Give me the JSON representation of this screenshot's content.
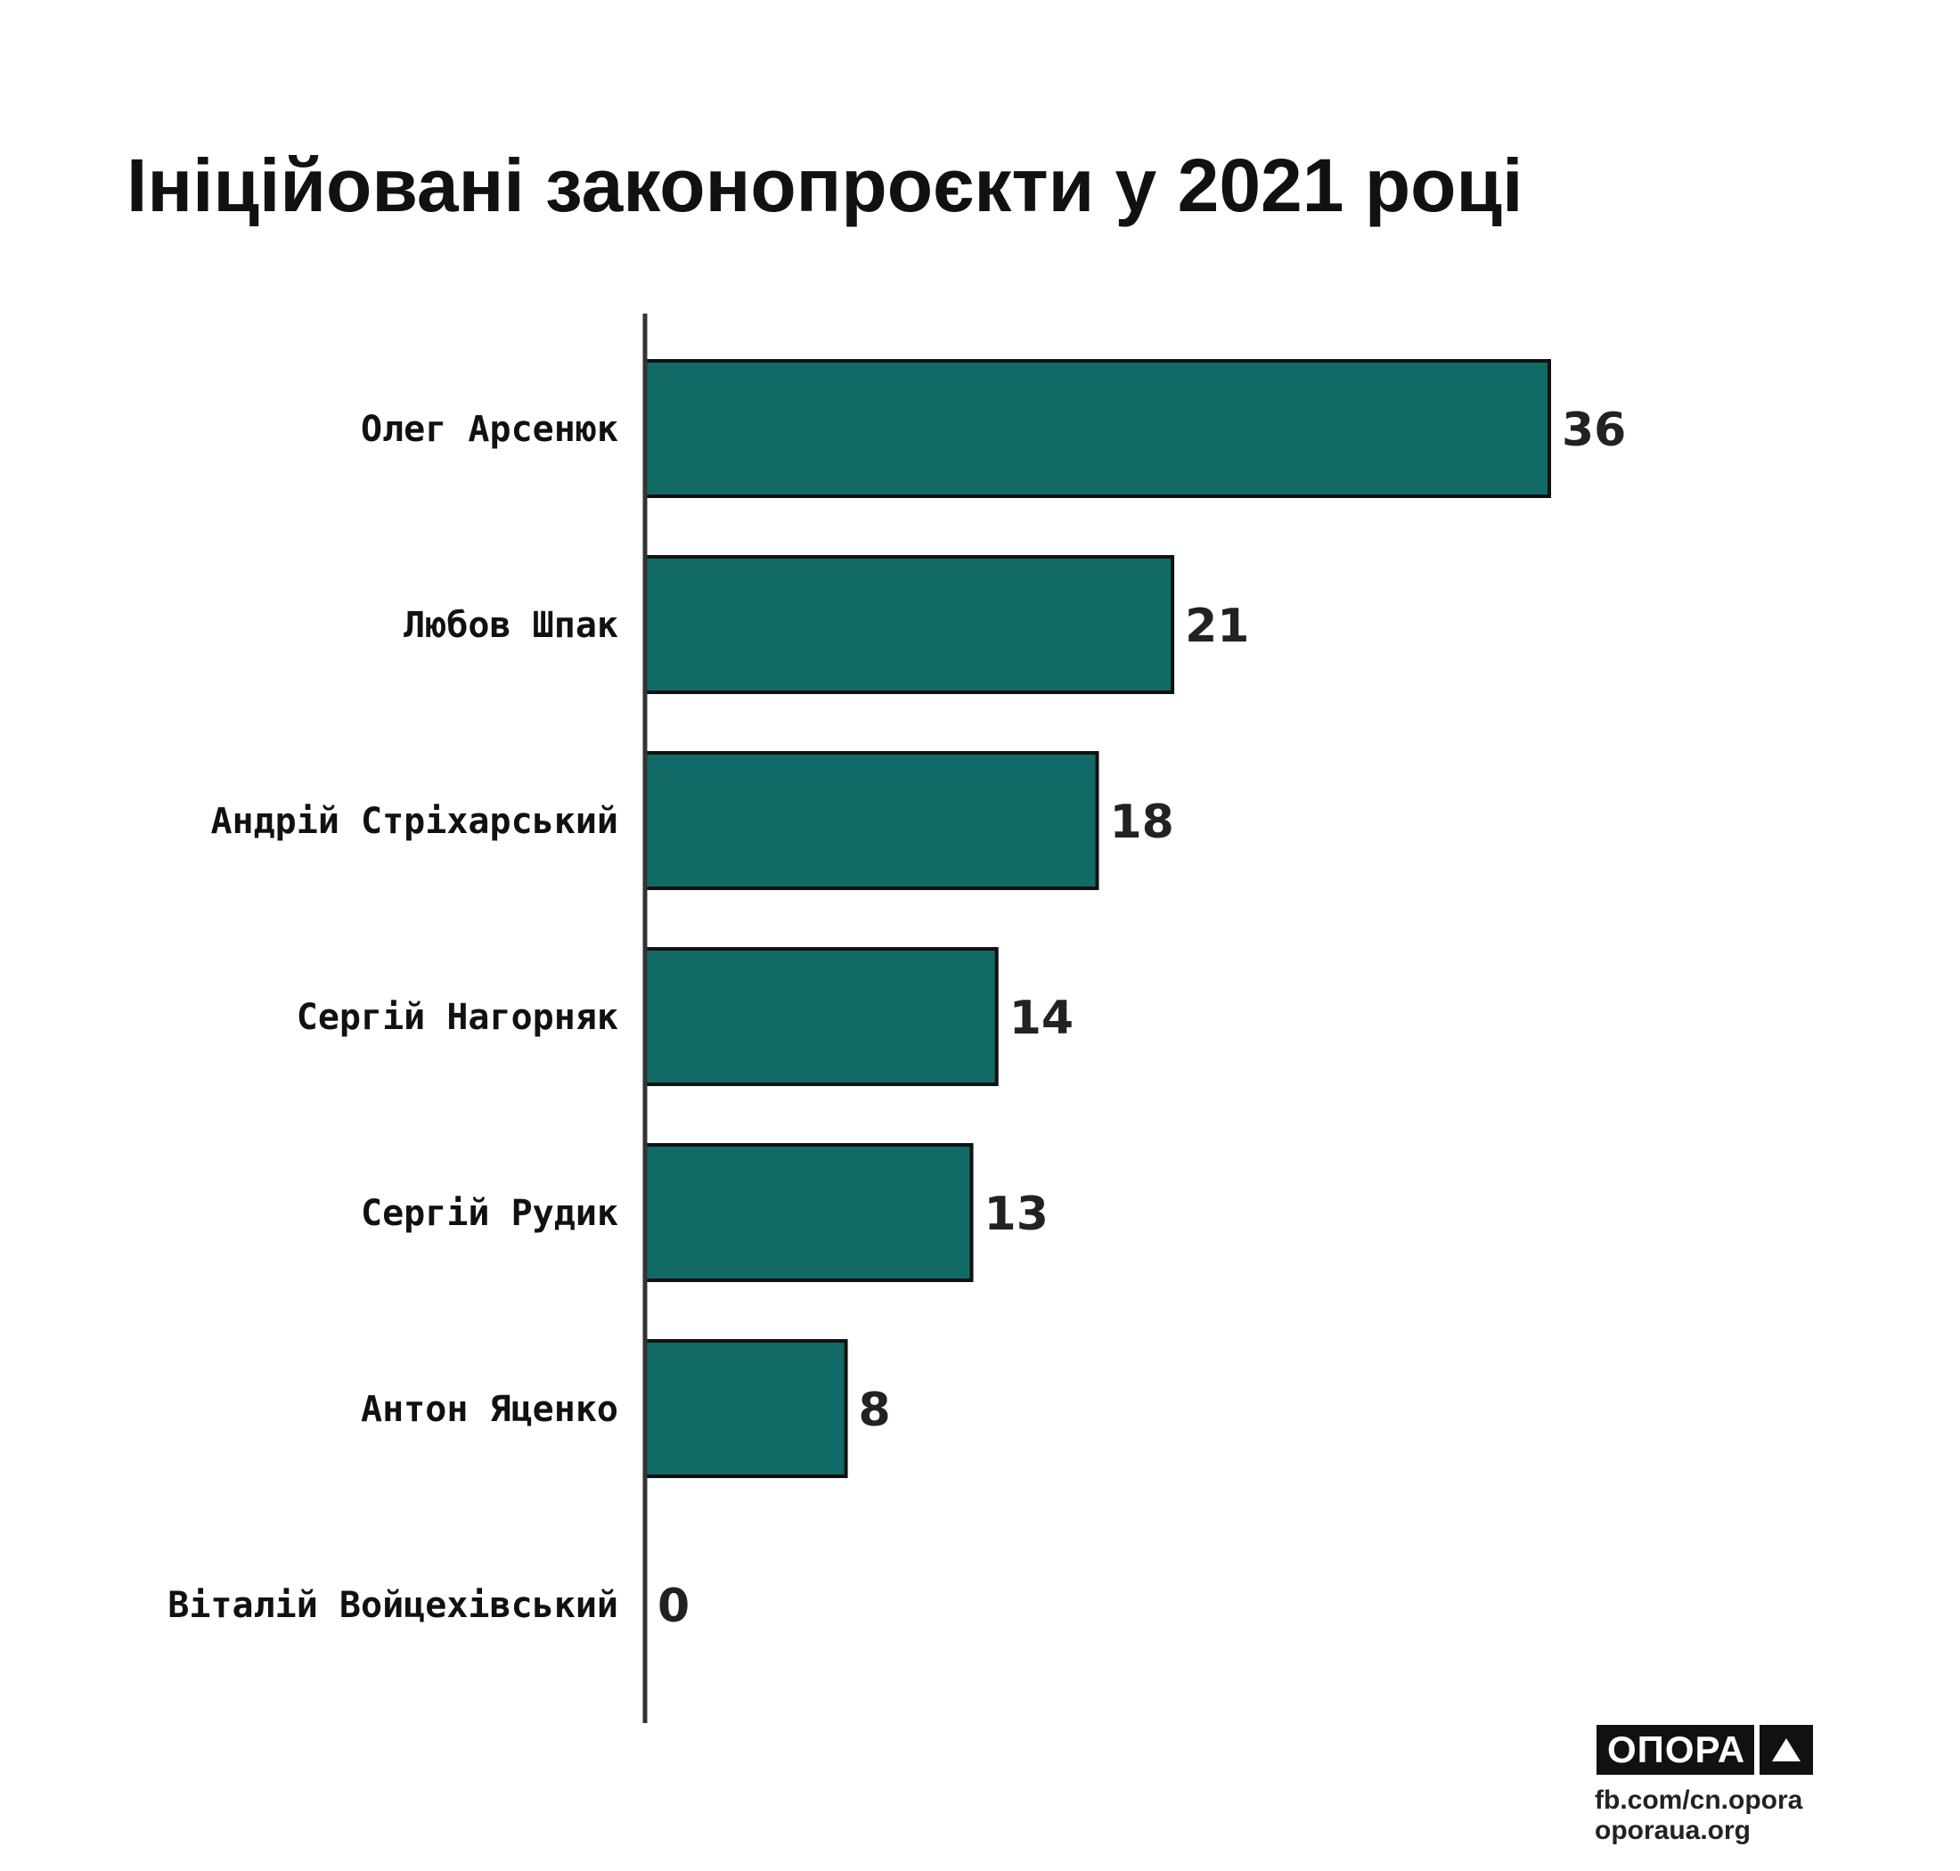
{
  "chart_data": {
    "type": "bar",
    "orientation": "horizontal",
    "title": "Ініційовані законопроєкти у 2021 році",
    "categories": [
      "Олег Арсенюк",
      "Любов Шпак",
      "Андрій Стріхарський",
      "Сергій Нагорняк",
      "Сергій Рудик",
      "Антон Яценко",
      "Віталій Войцехівський"
    ],
    "values": [
      36,
      21,
      18,
      14,
      13,
      8,
      0
    ],
    "xlim": [
      0,
      36
    ],
    "grid": false,
    "legend": "none",
    "bar_color": "#126a67",
    "bar_outline": "#111111",
    "axis_color": "#333333"
  },
  "branding": {
    "logo_text": "ОПОРА",
    "logo_symbol": "triangle-up-icon",
    "facebook": "fb.com/cn.opora",
    "website": "oporaua.org"
  }
}
